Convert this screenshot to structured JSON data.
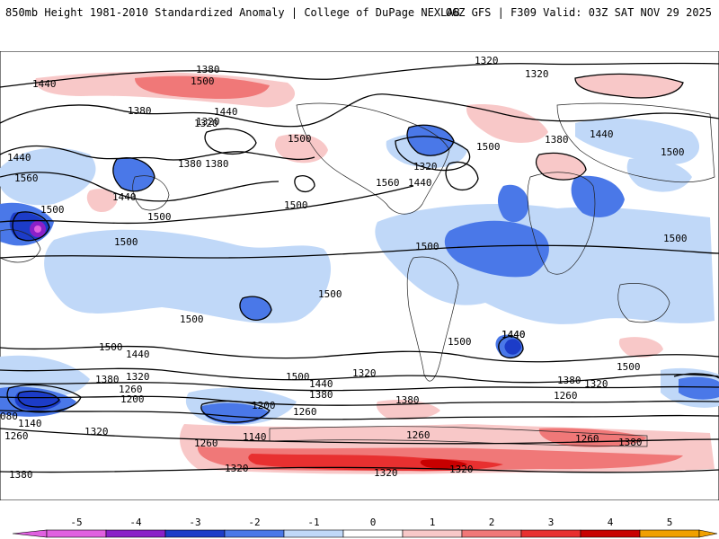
{
  "header": {
    "title": "850mb Height 1981-2010 Standardized Anomaly | College of DuPage NEXLAB",
    "run_info": "06Z GFS | F309 Valid: 03Z SAT NOV 29 2025"
  },
  "colors": {
    "neg5": "#e060e0",
    "neg4": "#8a20c8",
    "neg3": "#1c3cc8",
    "neg2": "#4a78e8",
    "neg1": "#c0d8f8",
    "zero": "#ffffff",
    "pos1": "#f8c8c8",
    "pos2": "#f07878",
    "pos3": "#e83030",
    "pos4": "#c80000",
    "pos5": "#f0a000"
  },
  "legend": {
    "ticks": [
      "-5",
      "-4",
      "-3",
      "-2",
      "-1",
      "0",
      "1",
      "2",
      "3",
      "4",
      "5"
    ]
  },
  "contour_labels": [
    "1440",
    "1380",
    "1500",
    "1320",
    "1320",
    "1440",
    "1380",
    "1320",
    "1500",
    "1380",
    "1440",
    "1560",
    "1440",
    "1500",
    "1440",
    "1500",
    "1500",
    "1320",
    "1380",
    "1320",
    "1500",
    "1560",
    "1440",
    "1380",
    "1500",
    "1500",
    "1500",
    "1500",
    "1500",
    "1500",
    "1440",
    "1500",
    "1380",
    "1320",
    "1260",
    "1200",
    "1500",
    "1440",
    "1380",
    "1320",
    "1200",
    "1260",
    "1140",
    "080",
    "1140",
    "1260",
    "1320",
    "1260",
    "1320",
    "1380",
    "1500",
    "1440",
    "1500",
    "1380",
    "1320",
    "1260",
    "1260",
    "1380",
    "1320",
    "1320",
    "1380",
    "1260",
    "1440"
  ]
}
